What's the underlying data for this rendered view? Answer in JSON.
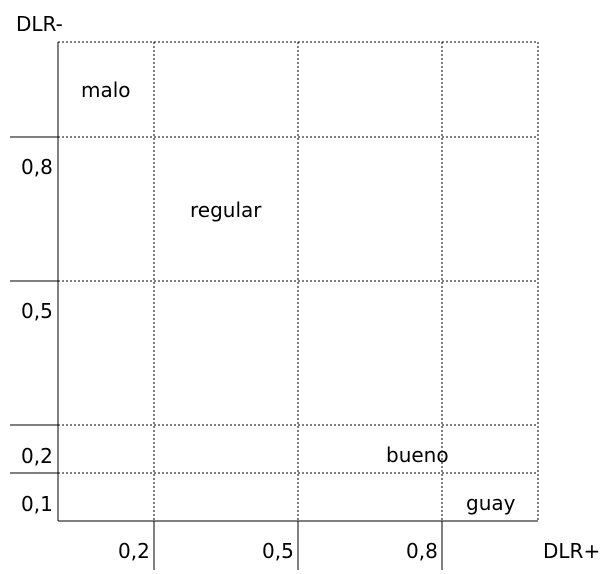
{
  "axes": {
    "y_label": "DLR-",
    "x_label": "DLR+",
    "y_ticks": [
      "0,8",
      "0,5",
      "0,2",
      "0,1"
    ],
    "x_ticks": [
      "0,2",
      "0,5",
      "0,8"
    ]
  },
  "regions": [
    {
      "label": "malo"
    },
    {
      "label": "regular"
    },
    {
      "label": "bueno"
    },
    {
      "label": "guay"
    }
  ]
}
